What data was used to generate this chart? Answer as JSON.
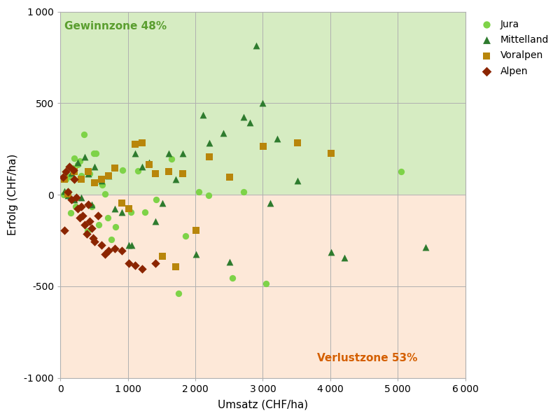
{
  "title": "",
  "xlabel": "Umsatz (CHF/ha)",
  "ylabel": "Erfolg (CHF/ha)",
  "xlim": [
    0,
    6000
  ],
  "ylim": [
    -1000,
    1000
  ],
  "xticks": [
    0,
    1000,
    2000,
    3000,
    4000,
    5000,
    6000
  ],
  "yticks": [
    -1000,
    -500,
    0,
    500,
    1000
  ],
  "gewinnzone_label": "Gewinnzone 48%",
  "verlustzone_label": "Verlustzone 53%",
  "gewinnzone_color": "#d6ecc2",
  "verlustzone_color": "#fde8d8",
  "gewinnzone_text_color": "#5a9e2f",
  "verlustzone_text_color": "#d45f00",
  "bg_color": "#ffffff",
  "series": [
    {
      "name": "Jura",
      "color": "#7ed348",
      "marker": "o",
      "size": 45,
      "x": [
        50,
        80,
        120,
        150,
        180,
        200,
        230,
        260,
        290,
        310,
        350,
        400,
        430,
        460,
        500,
        530,
        570,
        620,
        660,
        700,
        760,
        820,
        920,
        1050,
        1150,
        1250,
        1420,
        1650,
        1750,
        1850,
        2050,
        2200,
        2550,
        2720,
        3050,
        5050
      ],
      "y": [
        0,
        85,
        100,
        -100,
        145,
        200,
        -65,
        165,
        185,
        105,
        330,
        -200,
        115,
        -65,
        225,
        225,
        -165,
        55,
        5,
        -125,
        -245,
        -175,
        135,
        -95,
        130,
        -95,
        -25,
        195,
        -540,
        -225,
        15,
        -5,
        -455,
        15,
        -485,
        125
      ]
    },
    {
      "name": "Mittelland",
      "color": "#2e7b2e",
      "marker": "^",
      "size": 50,
      "x": [
        55,
        110,
        160,
        210,
        260,
        310,
        360,
        410,
        460,
        510,
        610,
        710,
        810,
        910,
        1010,
        1060,
        1110,
        1210,
        1310,
        1410,
        1510,
        1610,
        1710,
        1810,
        2010,
        2110,
        2210,
        2410,
        2510,
        2710,
        2810,
        2900,
        3000,
        3110,
        3210,
        3510,
        4010,
        4210,
        5410
      ],
      "y": [
        20,
        -5,
        120,
        -25,
        175,
        -15,
        205,
        115,
        -55,
        155,
        75,
        105,
        -75,
        -95,
        -275,
        -275,
        225,
        155,
        175,
        -145,
        -45,
        225,
        85,
        225,
        -325,
        435,
        285,
        335,
        -365,
        425,
        395,
        815,
        500,
        -45,
        305,
        75,
        -315,
        -345,
        -285
      ]
    },
    {
      "name": "Voralpen",
      "color": "#b8860b",
      "marker": "s",
      "size": 45,
      "x": [
        55,
        110,
        210,
        310,
        410,
        510,
        610,
        710,
        810,
        910,
        1010,
        1110,
        1210,
        1310,
        1410,
        1510,
        1610,
        1710,
        1810,
        2010,
        2210,
        2510,
        3010,
        3510,
        4010
      ],
      "y": [
        85,
        5,
        125,
        85,
        125,
        65,
        85,
        105,
        145,
        -45,
        -75,
        275,
        285,
        165,
        115,
        -335,
        125,
        -395,
        115,
        -195,
        205,
        95,
        265,
        285,
        225
      ]
    },
    {
      "name": "Alpen",
      "color": "#8b2500",
      "marker": "D",
      "size": 40,
      "x": [
        35,
        55,
        85,
        110,
        130,
        160,
        190,
        210,
        235,
        260,
        290,
        310,
        330,
        360,
        390,
        410,
        430,
        460,
        490,
        510,
        560,
        610,
        660,
        710,
        810,
        910,
        1010,
        1110,
        1210,
        1410
      ],
      "y": [
        95,
        -195,
        125,
        15,
        155,
        -25,
        135,
        85,
        -15,
        -75,
        -125,
        -65,
        -115,
        -165,
        -215,
        -55,
        -145,
        -185,
        -235,
        -255,
        -115,
        -275,
        -325,
        -305,
        -295,
        -305,
        -375,
        -385,
        -405,
        -375
      ]
    }
  ]
}
